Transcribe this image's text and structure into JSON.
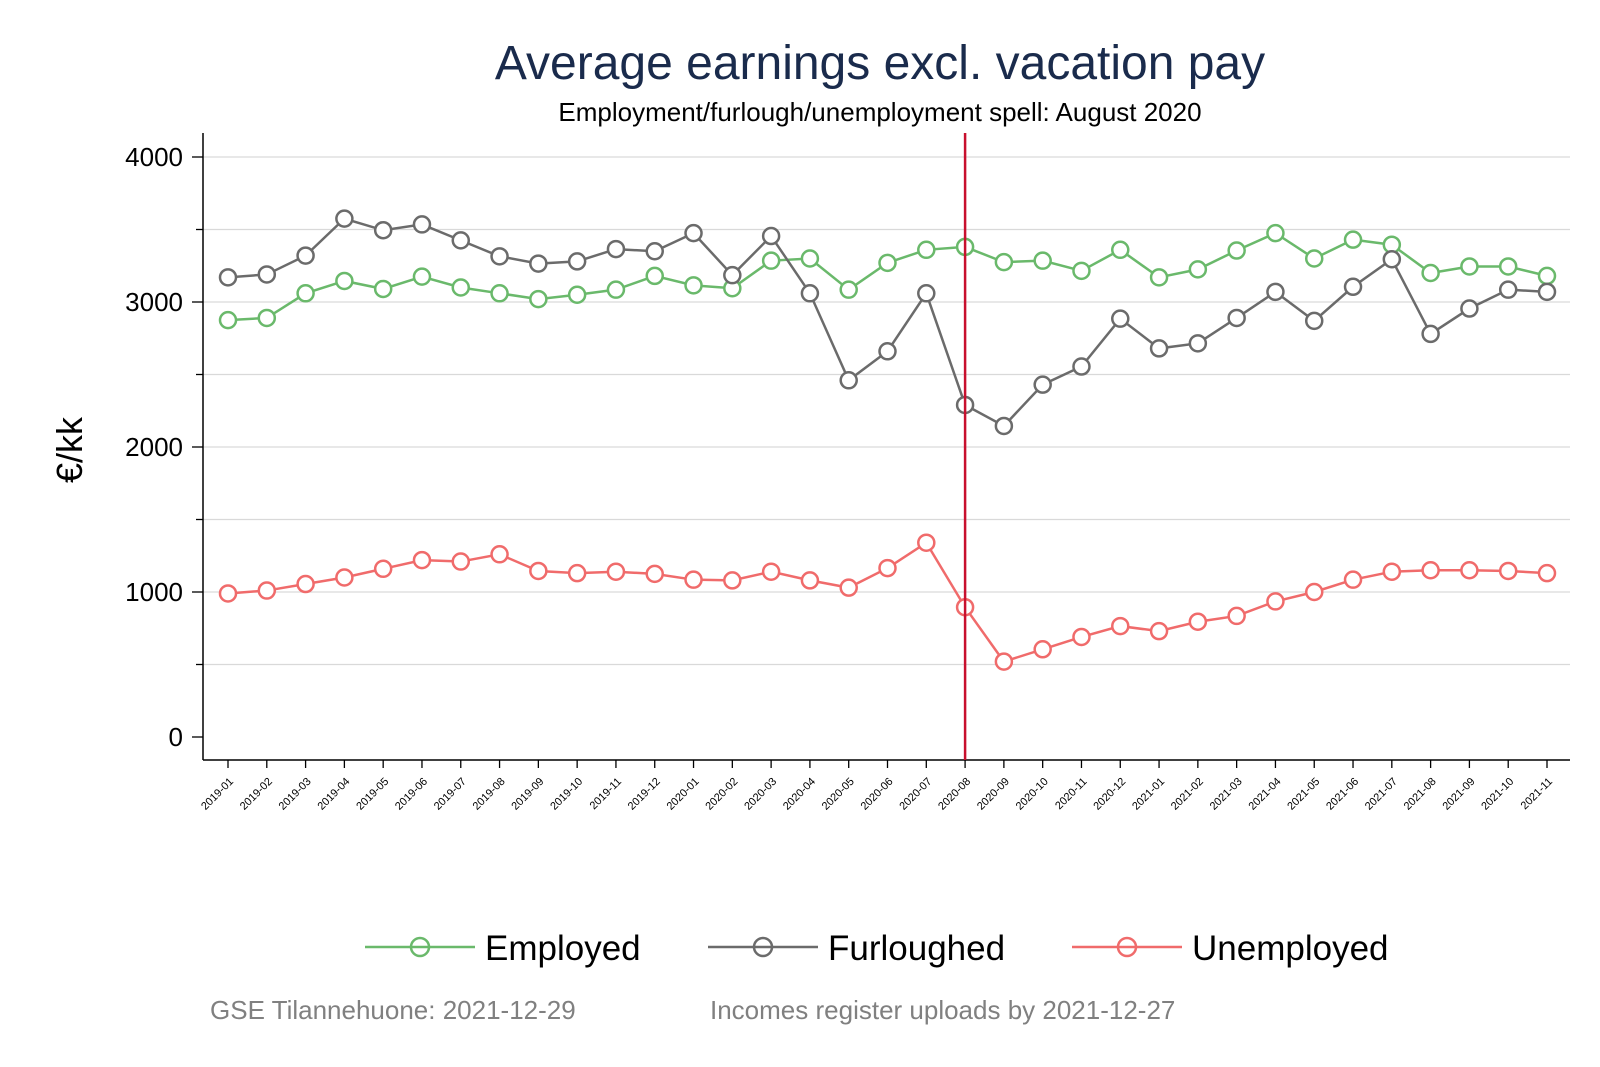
{
  "chart_data": {
    "type": "line",
    "title": "Average earnings excl. vacation pay",
    "subtitle": "Employment/furlough/unemployment spell: August 2020",
    "ylabel": "€/kk",
    "xlabel": "",
    "ylim": [
      -150,
      4150
    ],
    "yticks": [
      0,
      1000,
      2000,
      3000,
      4000
    ],
    "grid": true,
    "legend_position": "bottom",
    "vertical_marker": {
      "x": "2020-08",
      "color": "#c8102e"
    },
    "categories": [
      "2019-01",
      "2019-02",
      "2019-03",
      "2019-04",
      "2019-05",
      "2019-06",
      "2019-07",
      "2019-08",
      "2019-09",
      "2019-10",
      "2019-11",
      "2019-12",
      "2020-01",
      "2020-02",
      "2020-03",
      "2020-04",
      "2020-05",
      "2020-06",
      "2020-07",
      "2020-08",
      "2020-09",
      "2020-10",
      "2020-11",
      "2020-12",
      "2021-01",
      "2021-02",
      "2021-03",
      "2021-04",
      "2021-05",
      "2021-06",
      "2021-07",
      "2021-08",
      "2021-09",
      "2021-10",
      "2021-11"
    ],
    "series": [
      {
        "name": "Employed",
        "color": "#6ab96b",
        "values": [
          2875,
          2890,
          3060,
          3145,
          3090,
          3175,
          3100,
          3060,
          3020,
          3050,
          3085,
          3180,
          3115,
          3095,
          3285,
          3300,
          3085,
          3270,
          3360,
          3380,
          3275,
          3285,
          3215,
          3360,
          3170,
          3225,
          3355,
          3475,
          3300,
          3430,
          3395,
          3200,
          3245,
          3245,
          3180
        ]
      },
      {
        "name": "Furloughed",
        "color": "#6b6b6b",
        "values": [
          3170,
          3190,
          3320,
          3575,
          3495,
          3535,
          3425,
          3315,
          3265,
          3280,
          3365,
          3350,
          3475,
          3185,
          3455,
          3060,
          2460,
          2660,
          3060,
          2290,
          2145,
          2430,
          2555,
          2885,
          2680,
          2715,
          2890,
          3070,
          2870,
          3105,
          3295,
          2780,
          2955,
          3085,
          3070
        ]
      },
      {
        "name": "Unemployed",
        "color": "#f06b6b",
        "values": [
          990,
          1010,
          1055,
          1100,
          1160,
          1220,
          1210,
          1260,
          1145,
          1130,
          1140,
          1125,
          1085,
          1080,
          1140,
          1080,
          1030,
          1165,
          1340,
          895,
          520,
          605,
          690,
          765,
          730,
          795,
          835,
          935,
          1000,
          1085,
          1140,
          1150,
          1150,
          1145,
          1130
        ]
      }
    ]
  },
  "footer": {
    "source": "GSE Tilannehuone: 2021-12-29",
    "note": "Incomes register uploads by 2021-12-27"
  }
}
